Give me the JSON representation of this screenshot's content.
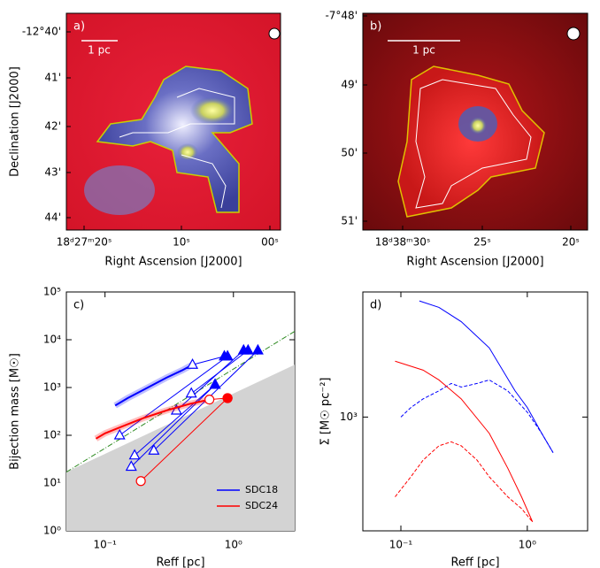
{
  "chart_data": [
    {
      "type": "image",
      "panel_label": "a)",
      "scale_bar": "1 pc",
      "xlabel": "Right Ascension [J2000]",
      "ylabel": "Declination [J2000]",
      "xticks": [
        "18ᵈ27ᵐ20ˢ",
        "10ˢ",
        "00ˢ"
      ],
      "yticks": [
        "-12°40'",
        "41'",
        "42'",
        "43'",
        "44'"
      ]
    },
    {
      "type": "image",
      "panel_label": "b)",
      "scale_bar": "1 pc",
      "xlabel": "Right Ascension [J2000]",
      "xticks": [
        "18ᵈ38ᵐ30ˢ",
        "25ˢ",
        "20ˢ"
      ],
      "yticks": [
        "-7°48'",
        "49'",
        "50'",
        "51'"
      ]
    },
    {
      "type": "scatter",
      "panel_label": "c)",
      "xlabel": "Reff [pc]",
      "ylabel": "Bijection mass [M☉]",
      "log": true,
      "xlim": [
        0.05,
        3
      ],
      "ylim": [
        1,
        100000
      ],
      "xticks": [
        {
          "value": 0.1,
          "label": "10⁻¹"
        },
        {
          "value": 1,
          "label": "10⁰"
        }
      ],
      "yticks": [
        {
          "value": 1,
          "label": "10⁰"
        },
        {
          "value": 10,
          "label": "10¹"
        },
        {
          "value": 100,
          "label": "10²"
        },
        {
          "value": 1000,
          "label": "10³"
        },
        {
          "value": 10000,
          "label": "10⁴"
        },
        {
          "value": 100000,
          "label": "10⁵"
        }
      ],
      "shaded_region": {
        "x": [
          0.05,
          3
        ],
        "y": [
          17,
          3000
        ],
        "color": "#d3d3d3"
      },
      "reference_line": {
        "x": [
          0.05,
          3
        ],
        "y": [
          17,
          15000
        ],
        "color": "#2e8b22"
      },
      "legend": "lower right",
      "series": [
        {
          "name": "SDC18",
          "color": "#0000ff",
          "marker": "triangle",
          "curve_x": [
            0.12,
            0.15,
            0.2,
            0.3,
            0.4,
            0.48
          ],
          "curve_y": [
            420,
            600,
            900,
            1600,
            2300,
            3000
          ],
          "start_x": [
            0.48,
            0.13,
            0.36,
            0.47,
            0.16,
            0.17,
            0.24
          ],
          "start_y": [
            3000,
            100,
            330,
            750,
            22,
            38,
            48
          ],
          "end_x": [
            0.85,
            0.9,
            1.2,
            1.3,
            0.72,
            0.72,
            1.55
          ],
          "end_y": [
            4500,
            4500,
            6000,
            6000,
            1150,
            1150,
            6000
          ]
        },
        {
          "name": "SDC24",
          "color": "#ff0000",
          "marker": "circle",
          "curve_x": [
            0.085,
            0.1,
            0.15,
            0.2,
            0.3,
            0.45,
            0.65
          ],
          "curve_y": [
            85,
            110,
            170,
            230,
            330,
            450,
            560
          ],
          "start_x": [
            0.19,
            0.65
          ],
          "start_y": [
            11,
            560
          ],
          "end_x": [
            0.9,
            0.9
          ],
          "end_y": [
            600,
            600
          ]
        }
      ]
    },
    {
      "type": "line",
      "panel_label": "d)",
      "xlabel": "Reff [pc]",
      "ylabel": "Σ [M☉ pc⁻²]",
      "log": true,
      "xlim": [
        0.05,
        3
      ],
      "ylim": [
        320,
        3500
      ],
      "xticks": [
        {
          "value": 0.1,
          "label": "10⁻¹"
        },
        {
          "value": 1,
          "label": "10⁰"
        }
      ],
      "yticks": [
        {
          "value": 1000,
          "label": "10³"
        }
      ],
      "series": [
        {
          "color": "#0000ff",
          "dashed": false,
          "x": [
            0.14,
            0.2,
            0.3,
            0.5,
            0.8,
            1.0,
            1.3,
            1.6
          ],
          "values": [
            3200,
            3000,
            2600,
            2000,
            1300,
            1100,
            850,
            700
          ]
        },
        {
          "color": "#0000ff",
          "dashed": true,
          "x": [
            0.1,
            0.12,
            0.15,
            0.2,
            0.25,
            0.3,
            0.4,
            0.5,
            0.7,
            1.0,
            1.3,
            1.6
          ],
          "values": [
            1000,
            1100,
            1200,
            1300,
            1400,
            1350,
            1400,
            1450,
            1300,
            1050,
            850,
            700
          ]
        },
        {
          "color": "#ff0000",
          "dashed": false,
          "x": [
            0.09,
            0.15,
            0.2,
            0.3,
            0.5,
            0.7,
            0.9,
            1.1
          ],
          "values": [
            1750,
            1600,
            1450,
            1200,
            850,
            600,
            450,
            350
          ]
        },
        {
          "color": "#ff0000",
          "dashed": true,
          "x": [
            0.09,
            0.12,
            0.15,
            0.2,
            0.25,
            0.3,
            0.4,
            0.5,
            0.7,
            0.9,
            1.1
          ],
          "values": [
            450,
            550,
            650,
            750,
            780,
            750,
            650,
            550,
            450,
            400,
            350
          ]
        }
      ]
    }
  ]
}
